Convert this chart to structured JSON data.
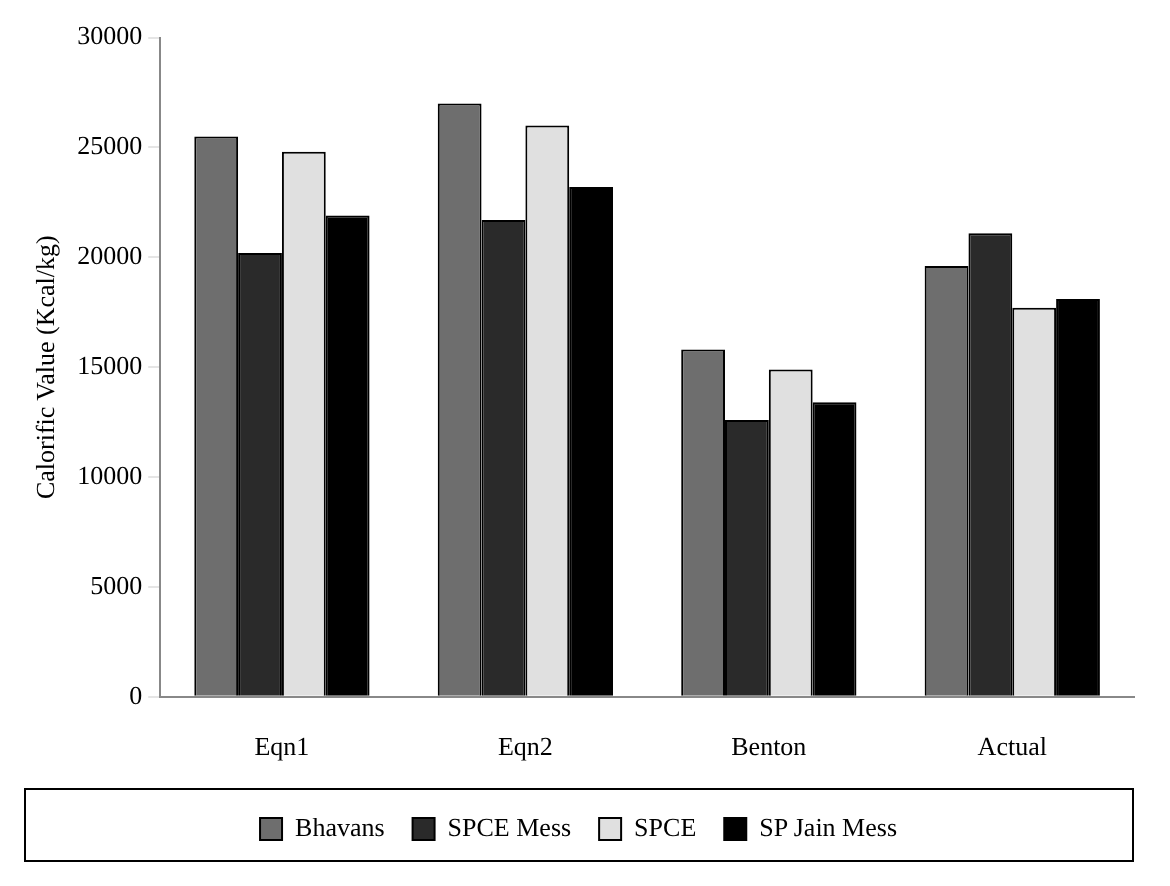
{
  "chart_data": {
    "type": "bar",
    "ylabel": "Calorific Value (Kcal/kg)",
    "categories": [
      "Eqn1",
      "Eqn2",
      "Benton",
      "Actual"
    ],
    "series": [
      {
        "name": "Bhavans",
        "color": "#6e6e6e",
        "values": [
          25500,
          27000,
          15800,
          19600
        ]
      },
      {
        "name": "SPCE Mess",
        "color": "#2a2a2a",
        "values": [
          20200,
          21700,
          12600,
          21100
        ]
      },
      {
        "name": "SPCE",
        "color": "#e0e0e0",
        "values": [
          24800,
          26000,
          14900,
          17700
        ]
      },
      {
        "name": "SP Jain Mess",
        "color": "#000000",
        "values": [
          21900,
          23200,
          13400,
          18100
        ]
      }
    ],
    "ylim": [
      0,
      30000
    ],
    "yticks": [
      0,
      5000,
      10000,
      15000,
      20000,
      25000,
      30000
    ],
    "grid": false,
    "legend": "bottom"
  }
}
